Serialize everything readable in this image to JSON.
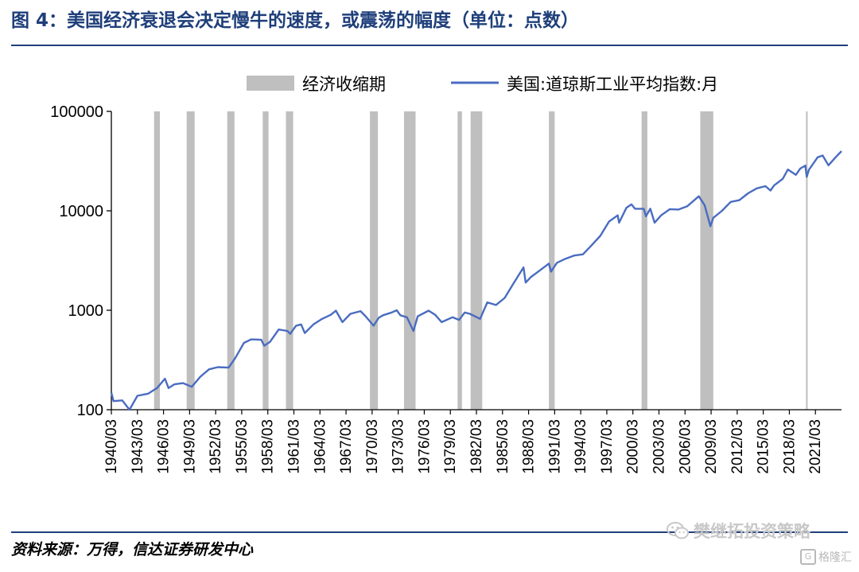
{
  "figure_title": "图 4：美国经济衰退会决定慢牛的速度，或震荡的幅度（单位：点数）",
  "source": "资料来源：万得，信达证券研发中心",
  "watermark": {
    "text": "樊继拓投资策略",
    "icon": "wechat-icon"
  },
  "platform_mark": {
    "text": "格隆汇",
    "icon": "gelonghui-logo-icon"
  },
  "colors": {
    "line": "#4a6cc0",
    "recession": "#bfbfbf",
    "title": "#1f3f7a",
    "axis": "#000000"
  },
  "chart_data": {
    "type": "line",
    "title": "",
    "xlabel": "",
    "ylabel": "",
    "y_scale": "log",
    "ylim": [
      100,
      100000
    ],
    "y_ticks": [
      100,
      1000,
      10000,
      100000
    ],
    "y_tick_labels": [
      "100",
      "1000",
      "10000",
      "100000"
    ],
    "xlim": [
      "1940-03",
      "2024-03"
    ],
    "x_tick_labels": [
      "1940/03",
      "1943/03",
      "1946/03",
      "1949/03",
      "1952/03",
      "1955/03",
      "1958/03",
      "1961/03",
      "1964/03",
      "1967/03",
      "1970/03",
      "1973/03",
      "1976/03",
      "1979/03",
      "1982/03",
      "1985/03",
      "1988/03",
      "1991/03",
      "1994/03",
      "1997/03",
      "2000/03",
      "2003/03",
      "2006/03",
      "2009/03",
      "2012/03",
      "2015/03",
      "2018/03",
      "2021/03"
    ],
    "legend": {
      "placement": "top-right",
      "entries": [
        "经济收缩期",
        "美国:道琼斯工业平均指数:月"
      ]
    },
    "recessions": [
      [
        "1945-02",
        "1945-10"
      ],
      [
        "1948-11",
        "1949-10"
      ],
      [
        "1953-07",
        "1954-05"
      ],
      [
        "1957-08",
        "1958-04"
      ],
      [
        "1960-04",
        "1961-02"
      ],
      [
        "1969-12",
        "1970-11"
      ],
      [
        "1973-11",
        "1975-03"
      ],
      [
        "1980-01",
        "1980-07"
      ],
      [
        "1981-07",
        "1982-11"
      ],
      [
        "1990-07",
        "1991-03"
      ],
      [
        "2001-03",
        "2001-11"
      ],
      [
        "2007-12",
        "2009-06"
      ],
      [
        "2020-02",
        "2020-04"
      ]
    ],
    "series": [
      {
        "name": "美国:道琼斯工业平均指数:月",
        "x": [
          "1940-03",
          "1940-06",
          "1941-06",
          "1942-04",
          "1943-03",
          "1944-06",
          "1945-06",
          "1946-05",
          "1946-10",
          "1947-06",
          "1948-06",
          "1949-06",
          "1950-06",
          "1951-06",
          "1952-06",
          "1953-09",
          "1954-06",
          "1955-06",
          "1956-04",
          "1957-06",
          "1957-10",
          "1958-06",
          "1959-06",
          "1960-06",
          "1960-10",
          "1961-06",
          "1962-01",
          "1962-06",
          "1963-06",
          "1964-06",
          "1965-06",
          "1966-01",
          "1966-10",
          "1967-09",
          "1968-11",
          "1969-06",
          "1970-05",
          "1970-12",
          "1971-06",
          "1972-06",
          "1973-01",
          "1973-06",
          "1974-03",
          "1974-12",
          "1975-06",
          "1976-09",
          "1977-06",
          "1978-03",
          "1979-06",
          "1980-03",
          "1980-11",
          "1981-06",
          "1982-08",
          "1983-06",
          "1984-06",
          "1985-06",
          "1986-06",
          "1987-08",
          "1987-11",
          "1988-06",
          "1989-06",
          "1990-07",
          "1990-10",
          "1991-06",
          "1992-06",
          "1993-06",
          "1994-06",
          "1995-06",
          "1996-06",
          "1997-06",
          "1998-06",
          "1998-08",
          "1999-06",
          "2000-01",
          "2000-06",
          "2001-06",
          "2001-09",
          "2002-03",
          "2002-09",
          "2003-06",
          "2004-06",
          "2005-06",
          "2006-06",
          "2007-10",
          "2008-06",
          "2009-02",
          "2009-06",
          "2010-06",
          "2011-06",
          "2012-06",
          "2013-06",
          "2014-06",
          "2015-06",
          "2016-01",
          "2016-06",
          "2017-06",
          "2018-01",
          "2018-12",
          "2019-06",
          "2020-01",
          "2020-03",
          "2020-06",
          "2021-06",
          "2022-01",
          "2022-09",
          "2023-06",
          "2024-03"
        ],
        "values": [
          148,
          122,
          124,
          100,
          138,
          145,
          165,
          205,
          165,
          180,
          185,
          170,
          215,
          255,
          268,
          265,
          330,
          470,
          510,
          505,
          440,
          480,
          640,
          620,
          580,
          700,
          720,
          590,
          720,
          820,
          900,
          990,
          760,
          920,
          980,
          870,
          700,
          840,
          890,
          950,
          1000,
          890,
          850,
          620,
          870,
          990,
          900,
          760,
          850,
          800,
          950,
          920,
          820,
          1200,
          1130,
          1330,
          1850,
          2700,
          1900,
          2150,
          2500,
          2950,
          2450,
          3000,
          3300,
          3550,
          3650,
          4500,
          5600,
          7800,
          9000,
          7600,
          10700,
          11600,
          10500,
          10500,
          8800,
          10500,
          7600,
          9000,
          10400,
          10300,
          11100,
          14000,
          11400,
          7000,
          8500,
          10000,
          12300,
          12800,
          15000,
          16800,
          17700,
          16000,
          18000,
          21000,
          26000,
          23000,
          26600,
          28500,
          21900,
          25800,
          34500,
          36000,
          28700,
          34000,
          39800
        ]
      }
    ]
  }
}
